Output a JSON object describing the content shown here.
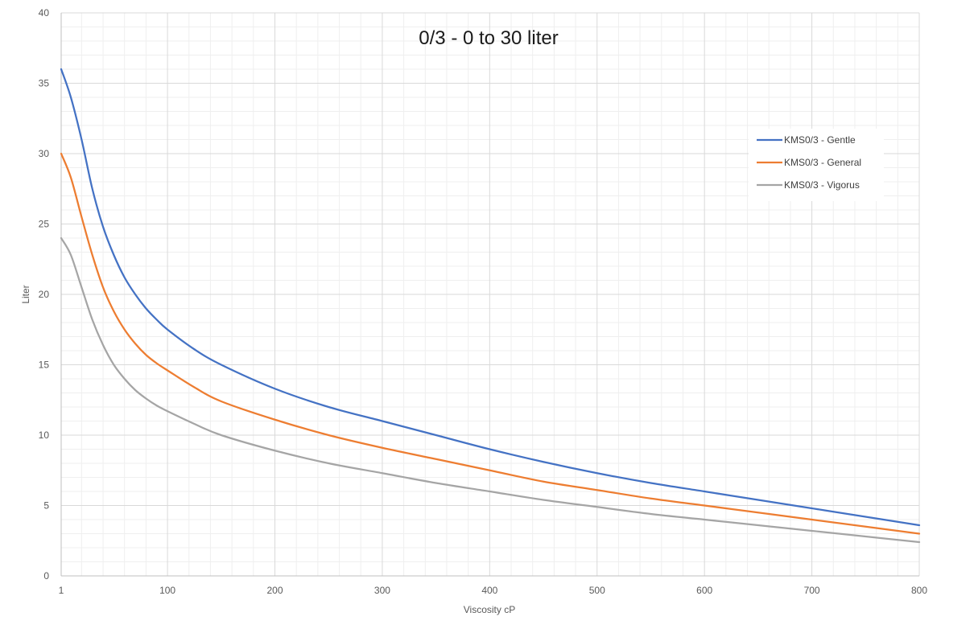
{
  "chart_data": {
    "type": "line",
    "title": "0/3 - 0 to 30 liter",
    "xlabel": "Viscosity cP",
    "ylabel": "Liter",
    "xlim": [
      1,
      800
    ],
    "ylim": [
      0,
      40
    ],
    "x_ticks": [
      1,
      100,
      200,
      300,
      400,
      500,
      600,
      700,
      800
    ],
    "y_ticks": [
      0,
      5,
      10,
      15,
      20,
      25,
      30,
      35,
      40
    ],
    "grid": true,
    "legend_position": "top-right",
    "x": [
      1,
      10,
      20,
      30,
      40,
      50,
      60,
      70,
      80,
      90,
      100,
      125,
      150,
      200,
      250,
      300,
      350,
      400,
      450,
      500,
      550,
      600,
      650,
      700,
      750,
      800
    ],
    "series": [
      {
        "name": "KMS0/3 - Gentle",
        "color": "#4472C4",
        "values": [
          36,
          34,
          31,
          27.5,
          24.8,
          22.8,
          21.2,
          20,
          19,
          18.2,
          17.5,
          16.1,
          15,
          13.3,
          12,
          11,
          10,
          9,
          8.1,
          7.3,
          6.6,
          6,
          5.4,
          4.8,
          4.2,
          3.6
        ]
      },
      {
        "name": "KMS0/3 - General",
        "color": "#ED7D31",
        "values": [
          30,
          28.3,
          25.5,
          22.8,
          20.5,
          18.8,
          17.5,
          16.5,
          15.7,
          15.1,
          14.6,
          13.4,
          12.4,
          11.1,
          10,
          9.1,
          8.3,
          7.5,
          6.7,
          6.1,
          5.5,
          5,
          4.5,
          4,
          3.5,
          3
        ]
      },
      {
        "name": "KMS0/3 - Vigorus",
        "color": "#A5A5A5",
        "values": [
          24,
          22.8,
          20.5,
          18.2,
          16.4,
          15,
          14,
          13.2,
          12.6,
          12.1,
          11.7,
          10.8,
          10,
          8.9,
          8,
          7.3,
          6.6,
          6,
          5.4,
          4.9,
          4.4,
          4,
          3.6,
          3.2,
          2.8,
          2.4
        ]
      }
    ]
  }
}
